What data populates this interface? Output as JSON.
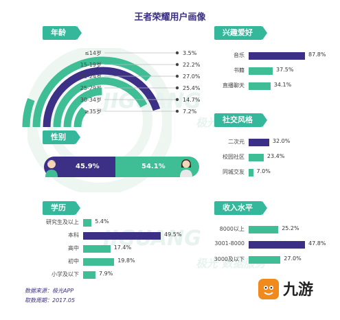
{
  "title": "王者荣耀用户画像",
  "colors": {
    "purple": "#3b2f86",
    "teal": "#3fbd95",
    "header": "#35b79b"
  },
  "sections": {
    "age": "年龄",
    "interest": "兴趣爱好",
    "gender": "性别",
    "social": "社交风格",
    "education": "学历",
    "income": "收入水平"
  },
  "watermark": {
    "jiguang": "JIGUANG",
    "jg2": "JIGUANG",
    "service": "极光 数据服务",
    "service2": "极光 数据服务"
  },
  "footer": {
    "source": "数据来源：极光APP",
    "period": "取数周期：2017.05"
  },
  "logo": {
    "text": "九游"
  },
  "chart_data": [
    {
      "type": "radial-bar",
      "section": "年龄",
      "categories": [
        "≤14岁",
        "15-19岁",
        "20-24岁",
        "25-29岁",
        "30-34岁",
        "≥35岁"
      ],
      "values": [
        3.5,
        22.2,
        27.0,
        25.4,
        14.7,
        7.2
      ],
      "labels": [
        "3.5%",
        "22.2%",
        "27.0%",
        "25.4%",
        "14.7%",
        "7.2%"
      ],
      "highlight": "20-24岁"
    },
    {
      "type": "bar",
      "section": "兴趣爱好",
      "categories": [
        "音乐",
        "书籍",
        "直播聊天"
      ],
      "values": [
        87.8,
        37.5,
        34.1
      ],
      "labels": [
        "87.8%",
        "37.5%",
        "34.1%"
      ],
      "highlight": "音乐"
    },
    {
      "type": "bar",
      "section": "性别",
      "categories": [
        "男",
        "女"
      ],
      "values": [
        45.9,
        54.1
      ],
      "labels": [
        "45.9%",
        "54.1%"
      ]
    },
    {
      "type": "bar",
      "section": "社交风格",
      "categories": [
        "二次元",
        "校园社区",
        "同城交友"
      ],
      "values": [
        32.0,
        23.4,
        7.0
      ],
      "labels": [
        "32.0%",
        "23.4%",
        "7.0%"
      ],
      "highlight": "二次元"
    },
    {
      "type": "bar",
      "section": "学历",
      "categories": [
        "研究生及以上",
        "本科",
        "高中",
        "初中",
        "小学及以下"
      ],
      "values": [
        5.4,
        49.5,
        17.4,
        19.8,
        7.9
      ],
      "labels": [
        "5.4%",
        "49.5%",
        "17.4%",
        "19.8%",
        "7.9%"
      ],
      "highlight": "本科"
    },
    {
      "type": "bar",
      "section": "收入水平",
      "categories": [
        "8000以上",
        "3001-8000",
        "3000及以下"
      ],
      "values": [
        25.2,
        47.8,
        27.0
      ],
      "labels": [
        "25.2%",
        "47.8%",
        "27.0%"
      ],
      "highlight": "3001-8000"
    }
  ]
}
